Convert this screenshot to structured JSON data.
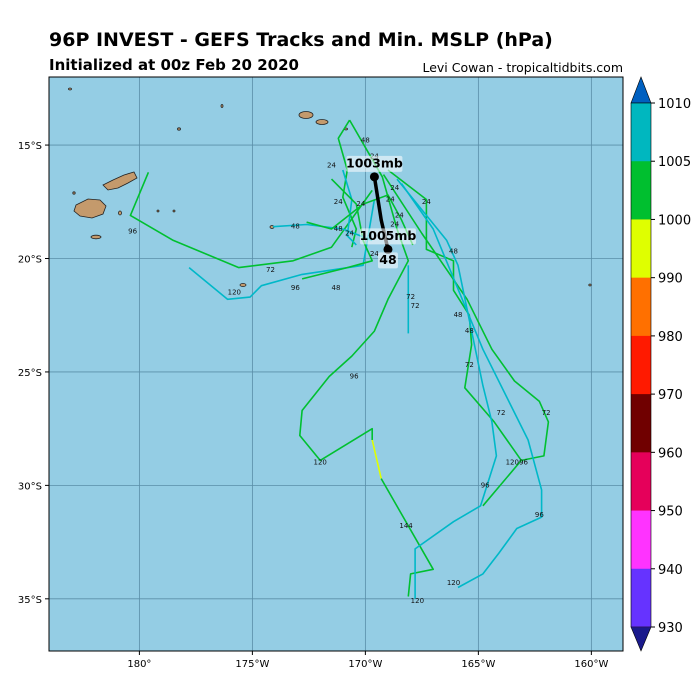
{
  "header": {
    "title": "96P INVEST - GEFS Tracks and Min. MSLP (hPa)",
    "subtitle": "Initialized at 00z Feb 20 2020",
    "credit": "Levi Cowan - tropicaltidbits.com"
  },
  "map": {
    "background_color": "#94cde4",
    "land_color": "#c49a6c",
    "lon_ticks": [
      {
        "lon": -180,
        "label": "180°"
      },
      {
        "lon": -175,
        "label": "175°W"
      },
      {
        "lon": -170,
        "label": "170°W"
      },
      {
        "lon": -165,
        "label": "165°W"
      },
      {
        "lon": -160,
        "label": "160°W"
      }
    ],
    "lat_ticks": [
      {
        "lat": -15,
        "label": "15°S"
      },
      {
        "lat": -20,
        "label": "20°S"
      },
      {
        "lat": -25,
        "label": "25°S"
      },
      {
        "lat": -30,
        "label": "30°S"
      },
      {
        "lat": -35,
        "label": "35°S"
      }
    ],
    "lon_range": [
      -184,
      -158.6
    ],
    "lat_range": [
      -37.3,
      -12.0
    ]
  },
  "colorbar": {
    "levels": [
      "1010",
      "1005",
      "1000",
      "990",
      "980",
      "970",
      "960",
      "950",
      "940",
      "930"
    ],
    "colors": [
      "#00b7bf",
      "#00bf2f",
      "#dfff00",
      "#ff7000",
      "#ff1a00",
      "#700000",
      "#e5005a",
      "#ff33ff",
      "#6633ff"
    ],
    "over_color": "#0060c0",
    "under_color": "#1a1a8c"
  },
  "track_colors": {
    "green": "#00c030",
    "cyan": "#00b8c8",
    "yellow": "#e0ff00",
    "mean": "#000000"
  },
  "tracks": [
    {
      "color": "green",
      "points": [
        [
          -170.7,
          -13.9
        ],
        [
          -169.25,
          -16.4
        ],
        [
          -168.6,
          -18.7
        ],
        [
          -168.1,
          -20.1
        ],
        [
          -169.0,
          -21.8
        ],
        [
          -169.6,
          -23.2
        ],
        [
          -170.6,
          -24.3
        ],
        [
          -171.6,
          -25.2
        ],
        [
          -172.8,
          -26.7
        ],
        [
          -172.9,
          -27.8
        ],
        [
          -172.0,
          -28.9
        ],
        [
          -169.7,
          -27.5
        ],
        [
          -169.7,
          -28.0
        ]
      ]
    },
    {
      "color": "yellow",
      "points": [
        [
          -169.7,
          -28.0
        ],
        [
          -169.3,
          -29.7
        ]
      ]
    },
    {
      "color": "green",
      "points": [
        [
          -169.3,
          -29.7
        ],
        [
          -167.0,
          -33.7
        ],
        [
          -168.0,
          -33.9
        ],
        [
          -168.1,
          -34.9
        ]
      ]
    },
    {
      "color": "green",
      "points": [
        [
          -169.7,
          -17.0
        ],
        [
          -171.5,
          -19.5
        ],
        [
          -173.2,
          -20.1
        ],
        [
          -175.6,
          -20.4
        ],
        [
          -178.5,
          -19.2
        ],
        [
          -180.4,
          -18.1
        ],
        [
          -179.6,
          -16.2
        ]
      ]
    },
    {
      "color": "cyan",
      "points": [
        [
          -169.6,
          -17.4
        ],
        [
          -170.1,
          -20.3
        ],
        [
          -172.8,
          -20.7
        ],
        [
          -174.6,
          -21.2
        ],
        [
          -175.1,
          -21.7
        ],
        [
          -176.1,
          -21.8
        ],
        [
          -177.8,
          -20.4
        ]
      ]
    },
    {
      "color": "green",
      "points": [
        [
          -169.2,
          -16.3
        ],
        [
          -167.5,
          -18.9
        ],
        [
          -165.5,
          -21.8
        ],
        [
          -164.4,
          -24.0
        ],
        [
          -163.4,
          -25.4
        ],
        [
          -162.3,
          -26.3
        ],
        [
          -161.9,
          -27.2
        ],
        [
          -162.1,
          -28.7
        ],
        [
          -163.1,
          -28.9
        ],
        [
          -164.8,
          -30.9
        ]
      ]
    },
    {
      "color": "green",
      "points": [
        [
          -169.0,
          -16.1
        ],
        [
          -167.3,
          -17.4
        ],
        [
          -167.3,
          -19.6
        ],
        [
          -166.1,
          -20.1
        ],
        [
          -166.1,
          -21.4
        ],
        [
          -165.4,
          -22.5
        ],
        [
          -165.3,
          -23.8
        ],
        [
          -165.6,
          -25.7
        ],
        [
          -164.3,
          -27.2
        ],
        [
          -163.1,
          -28.9
        ]
      ]
    },
    {
      "color": "cyan",
      "points": [
        [
          -168.6,
          -16.5
        ],
        [
          -166.4,
          -19.2
        ],
        [
          -165.9,
          -20.3
        ],
        [
          -165.3,
          -23.2
        ],
        [
          -164.8,
          -25.6
        ],
        [
          -164.4,
          -27.2
        ],
        [
          -164.2,
          -28.7
        ],
        [
          -164.9,
          -30.9
        ],
        [
          -166.1,
          -31.6
        ],
        [
          -167.8,
          -32.8
        ],
        [
          -167.8,
          -35.0
        ]
      ]
    },
    {
      "color": "cyan",
      "points": [
        [
          -168.4,
          -16.7
        ],
        [
          -167.0,
          -18.7
        ],
        [
          -164.8,
          -24.0
        ],
        [
          -162.8,
          -28.0
        ],
        [
          -162.2,
          -30.2
        ],
        [
          -162.2,
          -31.4
        ],
        [
          -163.3,
          -31.9
        ],
        [
          -164.1,
          -33.0
        ],
        [
          -164.8,
          -33.9
        ],
        [
          -165.9,
          -34.5
        ]
      ]
    },
    {
      "color": "cyan",
      "points": [
        [
          -168.1,
          -20.3
        ],
        [
          -168.1,
          -23.3
        ]
      ]
    },
    {
      "color": "green",
      "points": [
        [
          -170.7,
          -13.9
        ],
        [
          -171.2,
          -14.7
        ],
        [
          -170.8,
          -16.1
        ],
        [
          -171.0,
          -17.3
        ],
        [
          -170.4,
          -18.7
        ],
        [
          -170.6,
          -19.5
        ]
      ]
    },
    {
      "color": "cyan",
      "points": [
        [
          -171.0,
          -16.1
        ],
        [
          -170.6,
          -17.4
        ],
        [
          -170.8,
          -19.0
        ],
        [
          -170.4,
          -19.4
        ]
      ]
    },
    {
      "color": "green",
      "points": [
        [
          -171.5,
          -16.5
        ],
        [
          -170.4,
          -17.6
        ],
        [
          -170.1,
          -19.2
        ],
        [
          -169.7,
          -20.1
        ],
        [
          -170.8,
          -20.4
        ],
        [
          -172.0,
          -20.7
        ],
        [
          -172.8,
          -20.9
        ]
      ]
    },
    {
      "color": "cyan",
      "points": [
        [
          -174.1,
          -18.6
        ],
        [
          -172.6,
          -18.5
        ],
        [
          -171.0,
          -18.7
        ],
        [
          -169.7,
          -19.2
        ]
      ]
    },
    {
      "color": "green",
      "points": [
        [
          -172.6,
          -18.4
        ],
        [
          -171.5,
          -18.7
        ],
        [
          -170.1,
          -17.6
        ],
        [
          -169.0,
          -17.2
        ],
        [
          -168.4,
          -18.3
        ],
        [
          -167.9,
          -19.4
        ]
      ]
    }
  ],
  "mean_track": {
    "points": [
      [
        -169.6,
        -16.4
      ],
      [
        -169.3,
        -18.3
      ],
      [
        -169.0,
        -19.6
      ]
    ],
    "start_label": "1003mb",
    "end_label": "1005mb",
    "end_hour_label": "48"
  },
  "hour_labels": [
    {
      "text": "48",
      "lon": -170.0,
      "lat": -14.8
    },
    {
      "text": "24",
      "lon": -171.5,
      "lat": -15.9
    },
    {
      "text": "24",
      "lon": -169.6,
      "lat": -15.5
    },
    {
      "text": "24",
      "lon": -168.7,
      "lat": -16.9
    },
    {
      "text": "24",
      "lon": -171.2,
      "lat": -17.5
    },
    {
      "text": "24",
      "lon": -170.2,
      "lat": -17.6
    },
    {
      "text": "24",
      "lon": -168.9,
      "lat": -17.4
    },
    {
      "text": "24",
      "lon": -168.5,
      "lat": -18.1
    },
    {
      "text": "24",
      "lon": -167.3,
      "lat": -17.5
    },
    {
      "text": "24",
      "lon": -170.7,
      "lat": -18.9
    },
    {
      "text": "24",
      "lon": -168.7,
      "lat": -18.5
    },
    {
      "text": "48",
      "lon": -173.1,
      "lat": -18.6
    },
    {
      "text": "48",
      "lon": -171.2,
      "lat": -18.7
    },
    {
      "text": "48",
      "lon": -166.1,
      "lat": -19.7
    },
    {
      "text": "96",
      "lon": -180.3,
      "lat": -18.8
    },
    {
      "text": "72",
      "lon": -174.2,
      "lat": -20.5
    },
    {
      "text": "120",
      "lon": -175.8,
      "lat": -21.5
    },
    {
      "text": "96",
      "lon": -173.1,
      "lat": -21.3
    },
    {
      "text": "48",
      "lon": -171.3,
      "lat": -21.3
    },
    {
      "text": "24",
      "lon": -169.6,
      "lat": -19.8
    },
    {
      "text": "72",
      "lon": -168.0,
      "lat": -21.7
    },
    {
      "text": "72",
      "lon": -167.8,
      "lat": -22.1
    },
    {
      "text": "48",
      "lon": -165.9,
      "lat": -22.5
    },
    {
      "text": "48",
      "lon": -165.4,
      "lat": -23.2
    },
    {
      "text": "72",
      "lon": -165.4,
      "lat": -24.7
    },
    {
      "text": "96",
      "lon": -170.5,
      "lat": -25.2
    },
    {
      "text": "72",
      "lon": -164.0,
      "lat": -26.8
    },
    {
      "text": "72",
      "lon": -162.0,
      "lat": -26.8
    },
    {
      "text": "120",
      "lon": -172.0,
      "lat": -29.0
    },
    {
      "text": "120",
      "lon": -163.5,
      "lat": -29.0
    },
    {
      "text": "96",
      "lon": -163.0,
      "lat": -29.0
    },
    {
      "text": "96",
      "lon": -164.7,
      "lat": -30.0
    },
    {
      "text": "96",
      "lon": -162.3,
      "lat": -31.3
    },
    {
      "text": "144",
      "lon": -168.2,
      "lat": -31.8
    },
    {
      "text": "120",
      "lon": -166.1,
      "lat": -34.3
    },
    {
      "text": "120",
      "lon": -167.7,
      "lat": -35.1
    }
  ]
}
